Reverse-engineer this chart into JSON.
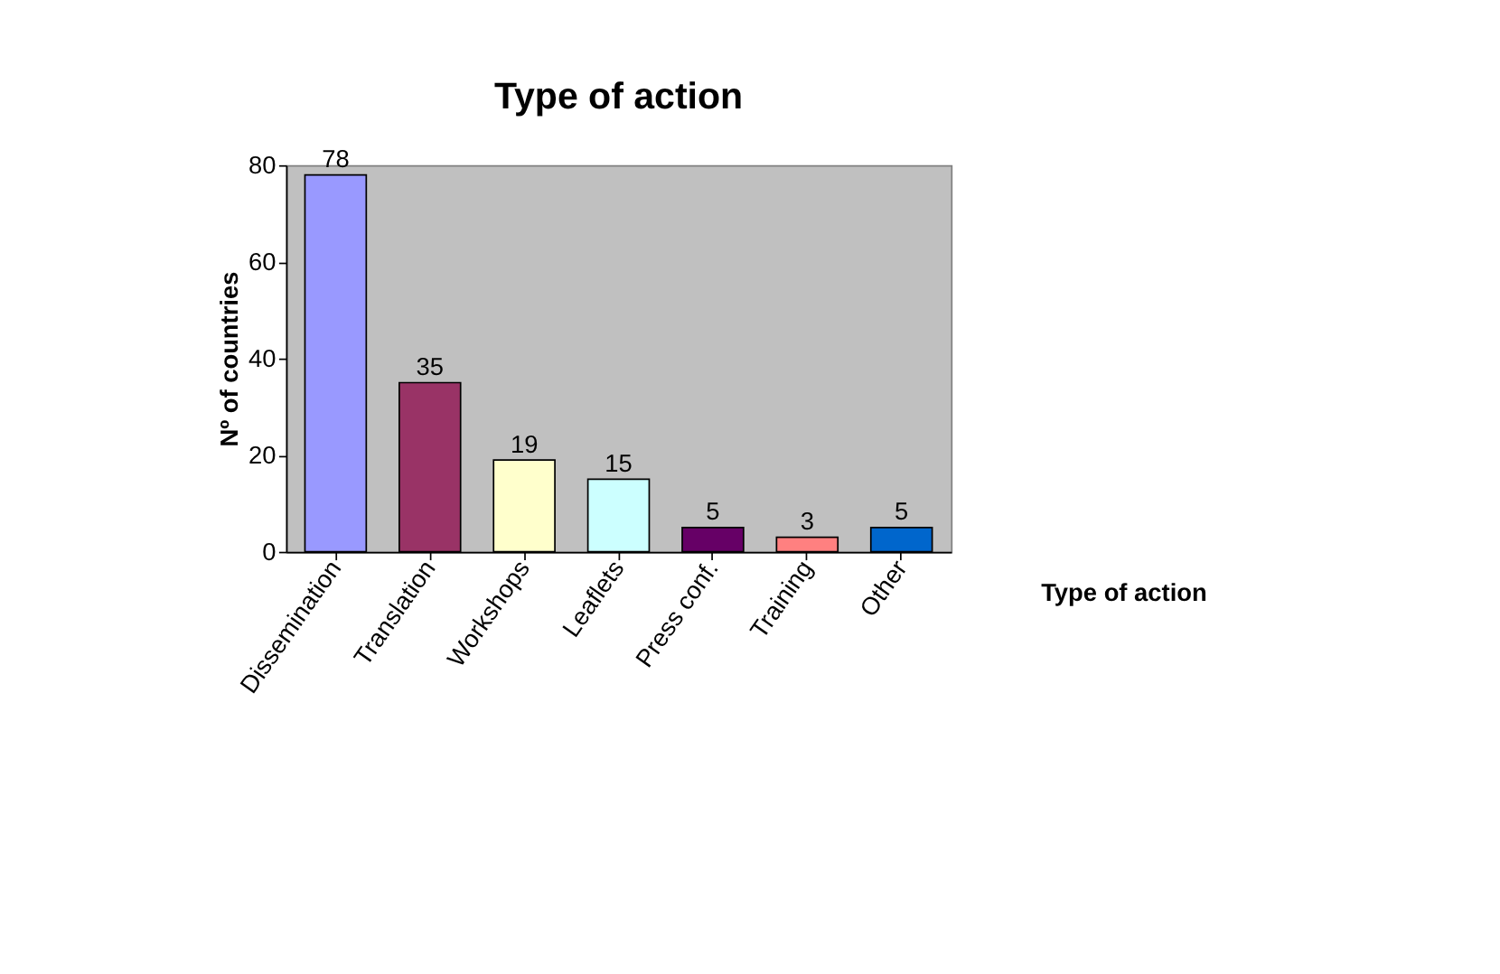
{
  "chart_data": {
    "type": "bar",
    "title": "Type of action",
    "xlabel": "Type of action",
    "ylabel": "Nº of countries",
    "categories": [
      "Dissemination",
      "Translation",
      "Workshops",
      "Leaflets",
      "Press conf.",
      "Training",
      "Other"
    ],
    "values": [
      78,
      35,
      19,
      15,
      5,
      3,
      5
    ],
    "colors": [
      "#9999ff",
      "#993366",
      "#ffffcc",
      "#ccffff",
      "#660066",
      "#ff8080",
      "#0066cc"
    ],
    "ylim": [
      0,
      80
    ],
    "yticks": [
      0,
      20,
      40,
      60,
      80
    ],
    "grid": false,
    "data_labels": true
  }
}
